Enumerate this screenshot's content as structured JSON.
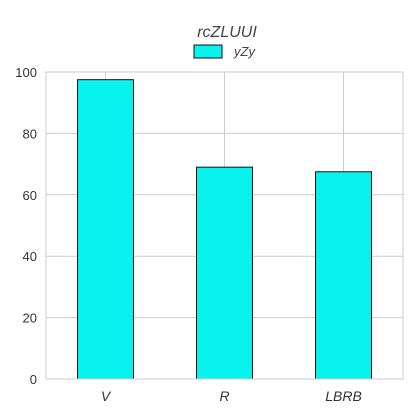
{
  "chart_data": {
    "type": "bar",
    "title": "rcZLUUI",
    "categories": [
      "V",
      "R",
      "LBRB"
    ],
    "series": [
      {
        "name": "yZy",
        "values": [
          97.5,
          69,
          67.5
        ]
      }
    ],
    "ylim": [
      0,
      100
    ],
    "yticks": [
      0,
      20,
      40,
      60,
      80,
      100
    ],
    "grid": true,
    "legend": "top-center",
    "color": "#08f2ee"
  }
}
